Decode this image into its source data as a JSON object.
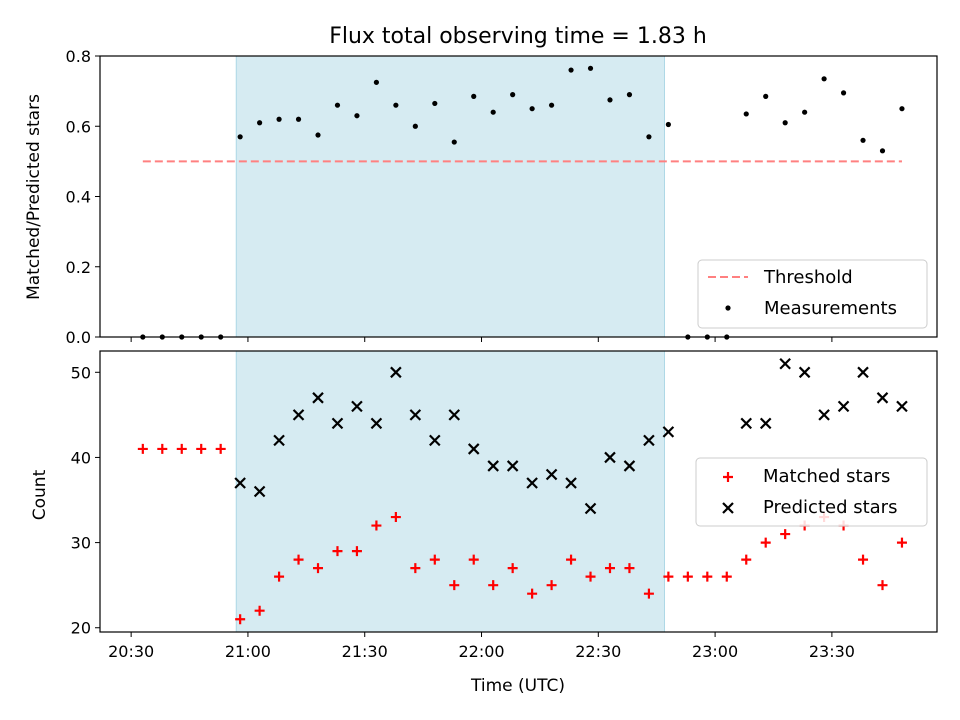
{
  "colors": {
    "shade": "#add8e6",
    "threshold": "#ff8080",
    "measurement": "#000000",
    "matched": "#ff0000",
    "predicted": "#000000"
  },
  "chart_data": [
    {
      "type": "scatter",
      "title": "Flux total observing time = 1.83 h",
      "xlabel": "",
      "ylabel": "Matched/Predicted stars",
      "ylim": [
        0,
        0.8
      ],
      "yticks": [
        "0.0",
        "0.2",
        "0.4",
        "0.6",
        "0.8"
      ],
      "xlim": [
        "20:22",
        "23:57"
      ],
      "shaded_span": [
        "20:57",
        "22:47"
      ],
      "legend_position": "lower right",
      "threshold": {
        "name": "Threshold",
        "y": 0.5,
        "x": [
          "20:33",
          "23:48"
        ]
      },
      "series": [
        {
          "name": "Measurements",
          "x": [
            "20:33",
            "20:38",
            "20:43",
            "20:48",
            "20:53",
            "20:58",
            "21:03",
            "21:08",
            "21:13",
            "21:18",
            "21:23",
            "21:28",
            "21:33",
            "21:38",
            "21:43",
            "21:48",
            "21:53",
            "21:58",
            "22:03",
            "22:08",
            "22:13",
            "22:18",
            "22:23",
            "22:28",
            "22:33",
            "22:38",
            "22:43",
            "22:48",
            "22:53",
            "22:58",
            "23:03",
            "23:08",
            "23:13",
            "23:18",
            "23:23",
            "23:28",
            "23:33",
            "23:38",
            "23:43",
            "23:48"
          ],
          "y": [
            0,
            0,
            0,
            0,
            0,
            0.57,
            0.61,
            0.62,
            0.62,
            0.575,
            0.66,
            0.63,
            0.725,
            0.66,
            0.6,
            0.665,
            0.555,
            0.685,
            0.64,
            0.69,
            0.65,
            0.66,
            0.76,
            0.765,
            0.675,
            0.69,
            0.57,
            0.605,
            0,
            0,
            0,
            0.635,
            0.685,
            0.61,
            0.64,
            0.735,
            0.695,
            0.56,
            0.53,
            0.65
          ]
        }
      ]
    },
    {
      "type": "scatter",
      "title": "",
      "xlabel": "Time (UTC)",
      "ylabel": "Count",
      "ylim": [
        19.5,
        52.5
      ],
      "yticks": [
        "20",
        "30",
        "40",
        "50"
      ],
      "xticks": [
        "20:30",
        "21:00",
        "21:30",
        "22:00",
        "22:30",
        "23:00",
        "23:30"
      ],
      "xlim": [
        "20:22",
        "23:57"
      ],
      "shaded_span": [
        "20:57",
        "22:47"
      ],
      "legend_position": "center right",
      "series": [
        {
          "name": "Matched stars",
          "marker": "+",
          "x": [
            "20:33",
            "20:38",
            "20:43",
            "20:48",
            "20:53",
            "20:58",
            "21:03",
            "21:08",
            "21:13",
            "21:18",
            "21:23",
            "21:28",
            "21:33",
            "21:38",
            "21:43",
            "21:48",
            "21:53",
            "21:58",
            "22:03",
            "22:08",
            "22:13",
            "22:18",
            "22:23",
            "22:28",
            "22:33",
            "22:38",
            "22:43",
            "22:48",
            "22:53",
            "22:58",
            "23:03",
            "23:08",
            "23:13",
            "23:18",
            "23:23",
            "23:28",
            "23:33",
            "23:38",
            "23:43",
            "23:48"
          ],
          "y": [
            41,
            41,
            41,
            41,
            41,
            21,
            22,
            26,
            28,
            27,
            29,
            29,
            32,
            33,
            27,
            28,
            25,
            28,
            25,
            27,
            24,
            25,
            28,
            26,
            27,
            27,
            24,
            26,
            26,
            26,
            26,
            28,
            30,
            31,
            32,
            33,
            32,
            28,
            25,
            30
          ]
        },
        {
          "name": "Predicted stars",
          "marker": "x",
          "x": [
            "20:58",
            "21:03",
            "21:08",
            "21:13",
            "21:18",
            "21:23",
            "21:28",
            "21:33",
            "21:38",
            "21:43",
            "21:48",
            "21:53",
            "21:58",
            "22:03",
            "22:08",
            "22:13",
            "22:18",
            "22:23",
            "22:28",
            "22:33",
            "22:38",
            "22:43",
            "22:48",
            "23:08",
            "23:13",
            "23:18",
            "23:23",
            "23:28",
            "23:33",
            "23:38",
            "23:43",
            "23:48"
          ],
          "y": [
            37,
            36,
            42,
            45,
            47,
            44,
            46,
            44,
            50,
            45,
            42,
            45,
            41,
            39,
            39,
            37,
            38,
            37,
            34,
            40,
            39,
            42,
            43,
            44,
            44,
            51,
            50,
            45,
            46,
            50,
            47,
            46
          ]
        }
      ]
    }
  ]
}
